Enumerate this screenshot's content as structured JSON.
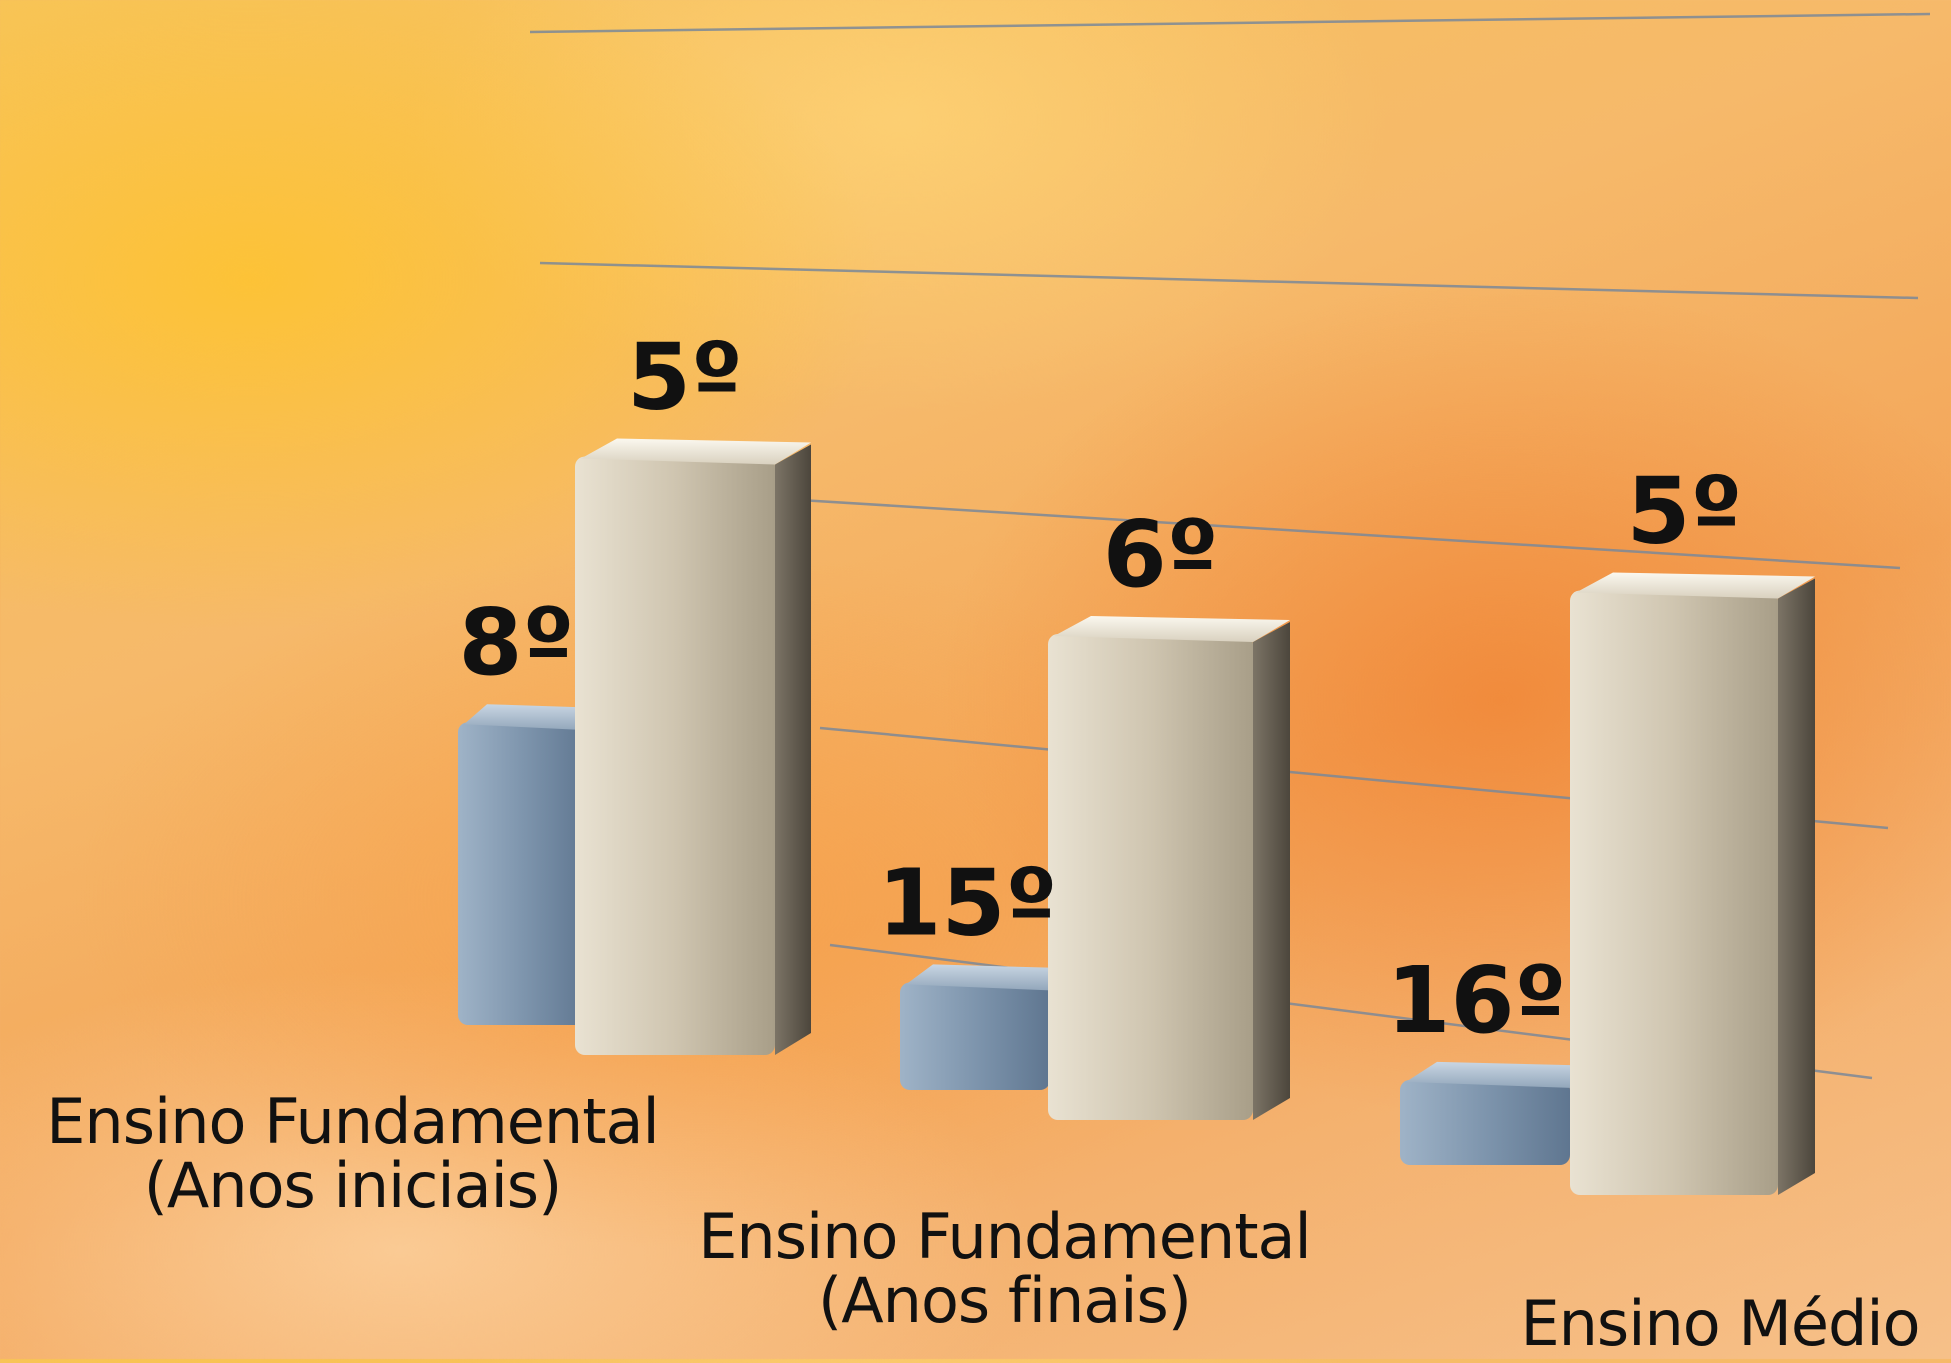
{
  "chart_data": {
    "type": "bar",
    "categories": [
      {
        "line1": "Ensino Fundamental",
        "line2": "(Anos iniciais)"
      },
      {
        "line1": "Ensino Fundamental",
        "line2": "(Anos finais)"
      },
      {
        "line1": "Ensino Médio",
        "line2": ""
      }
    ],
    "series": [
      {
        "values": [
          8,
          15,
          16
        ],
        "labels": [
          "8º",
          "15º",
          "16º"
        ],
        "color": "#7b93ad"
      },
      {
        "values": [
          5,
          6,
          5
        ],
        "labels": [
          "5º",
          "6º",
          "5º"
        ],
        "color": "#c8bda8"
      }
    ],
    "title": "",
    "xlabel": "",
    "ylabel": "",
    "grid": true,
    "legend": "none"
  }
}
